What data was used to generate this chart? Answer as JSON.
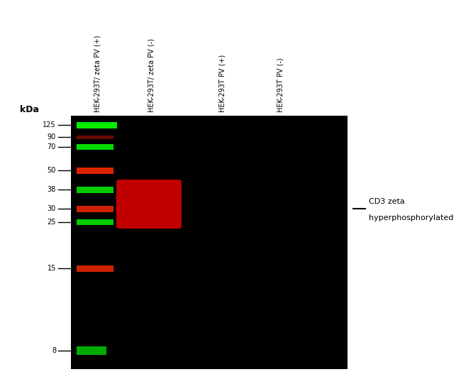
{
  "bg_color": "#000000",
  "outer_bg": "#ffffff",
  "lane_labels": [
    "HEK-293T/ zeta PV (+)",
    "HEK-293T/ zeta PV (-)",
    "HEK-293T PV (+)",
    "HEK-293T PV (-)"
  ],
  "kda_label": "kDa",
  "mw_markers": [
    125,
    90,
    70,
    50,
    38,
    30,
    25,
    15,
    8
  ],
  "annotation_text_line1": "CD3 zeta",
  "annotation_text_line2": "hyperphosphorylated",
  "figsize": [
    6.5,
    5.41
  ],
  "dpi": 100
}
